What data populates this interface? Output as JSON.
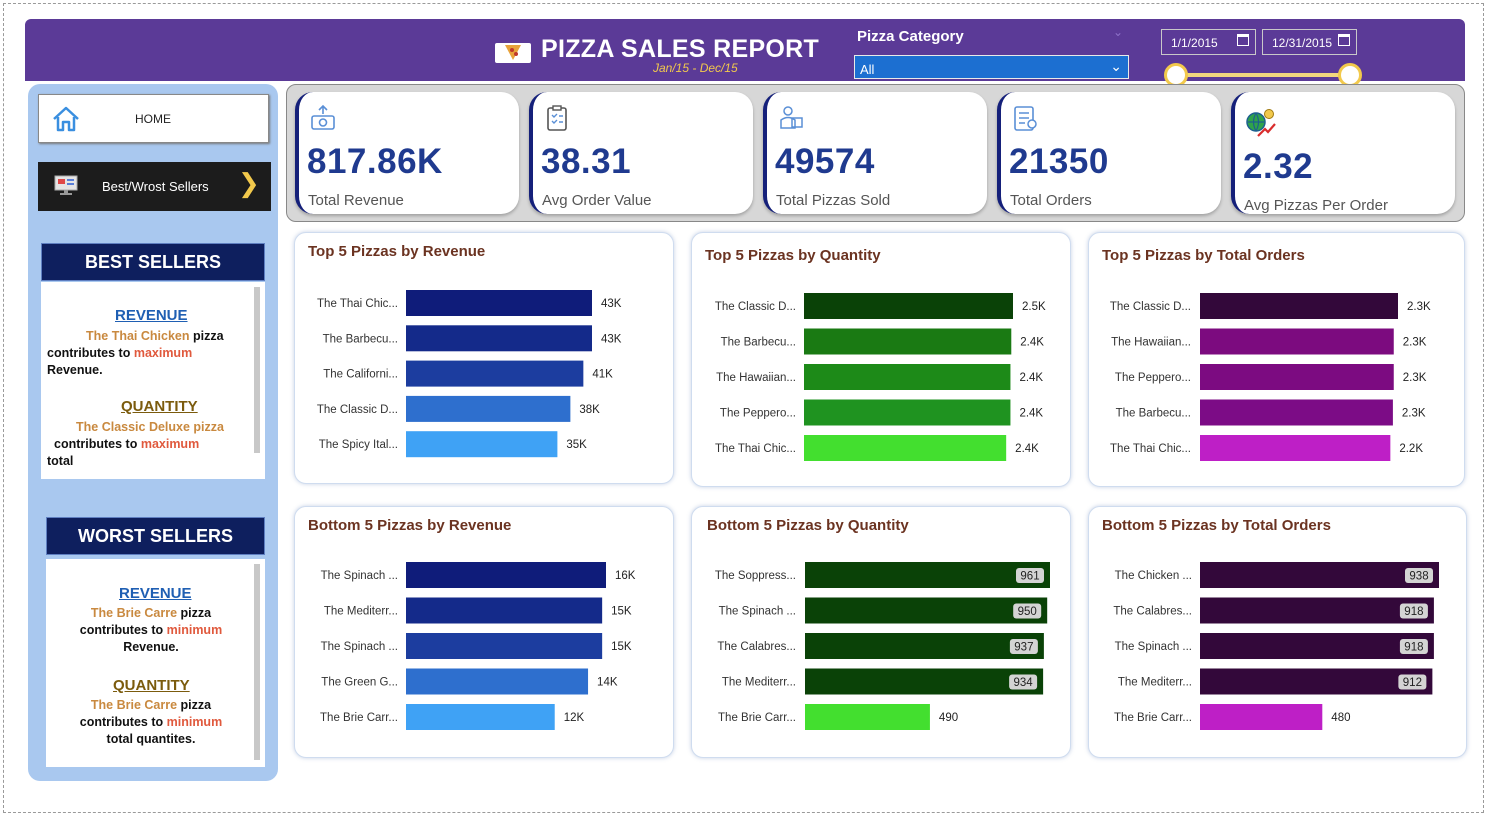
{
  "header": {
    "title": "PIZZA SALES REPORT",
    "subtitle": "Jan/15 - Dec/15",
    "category_label": "Pizza Category",
    "category_value": "All",
    "date_start": "1/1/2015",
    "date_end": "12/31/2015"
  },
  "nav": {
    "home_label": "HOME",
    "best_worst_label": "Best/Wrost Sellers"
  },
  "best_sellers": {
    "heading": "BEST SELLERS",
    "revenue_heading": "REVENUE",
    "revenue_pizza": "The Thai Chicken",
    "revenue_word": "pizza",
    "revenue_pre": "contributes to",
    "revenue_highlight": "maximum",
    "revenue_post": "Revenue.",
    "quantity_heading": "QUANTITY",
    "quantity_pizza": "The Classic Deluxe pizza",
    "quantity_pre": "contributes to",
    "quantity_highlight": "maximum",
    "quantity_post": "total"
  },
  "worst_sellers": {
    "heading": "WORST SELLERS",
    "revenue_heading": "REVENUE",
    "revenue_pizza": "The Brie Carre",
    "revenue_word": "pizza",
    "revenue_pre": "contributes to",
    "revenue_highlight": "minimum",
    "revenue_post": "Revenue.",
    "quantity_heading": "QUANTITY",
    "quantity_pizza": "The Brie Carre",
    "quantity_word": "pizza",
    "quantity_pre": "contributes to",
    "quantity_highlight": "minimum",
    "quantity_post": "total quantites."
  },
  "kpis": [
    {
      "value": "817.86K",
      "label": "Total Revenue",
      "icon": "money-icon"
    },
    {
      "value": "38.31",
      "label": "Avg Order Value",
      "icon": "clipboard-icon"
    },
    {
      "value": "49574",
      "label": "Total Pizzas Sold",
      "icon": "delivery-icon"
    },
    {
      "value": "21350",
      "label": "Total Orders",
      "icon": "order-list-icon"
    },
    {
      "value": "2.32",
      "label": "Avg Pizzas Per Order",
      "icon": "globe-growth-icon"
    }
  ],
  "colors": {
    "header": "#5b3a97",
    "blue": [
      "#0f1c7a",
      "#142a8a",
      "#1c3d9f",
      "#2e6fce",
      "#3fa2f5"
    ],
    "green": [
      "#0a4207",
      "#1a7a13",
      "#1d8a18",
      "#1f9320",
      "#43df2f"
    ],
    "purple": [
      "#33083a",
      "#7c0b7f",
      "#7c0b81",
      "#7c0c86",
      "#be1fc6"
    ],
    "green_bottom": [
      "#0a4207",
      "#0a4207",
      "#0a4207",
      "#0a4207",
      "#43df2f"
    ],
    "purple_bottom": [
      "#33083a",
      "#33083a",
      "#33083a",
      "#33083a",
      "#be1fc6"
    ]
  },
  "chart_data": [
    {
      "type": "bar",
      "orientation": "horizontal",
      "title": "Top 5 Pizzas by Revenue",
      "categories": [
        "The Thai Chic...",
        "The Barbecu...",
        "The Californi...",
        "The Classic D...",
        "The Spicy Ital..."
      ],
      "values": [
        43,
        43,
        41,
        38,
        35
      ],
      "labels": [
        "43K",
        "43K",
        "41K",
        "38K",
        "35K"
      ],
      "xlim": [
        0,
        43
      ],
      "palette": "blue",
      "label_style": "outside"
    },
    {
      "type": "bar",
      "orientation": "horizontal",
      "title": "Top 5 Pizzas by Quantity",
      "categories": [
        "The Classic D...",
        "The Barbecu...",
        "The Hawaiian...",
        "The Peppero...",
        "The Thai Chic..."
      ],
      "values": [
        2.45,
        2.43,
        2.42,
        2.42,
        2.37
      ],
      "labels": [
        "2.5K",
        "2.4K",
        "2.4K",
        "2.4K",
        "2.4K"
      ],
      "xlim": [
        0,
        2.45
      ],
      "palette": "green",
      "label_style": "outside"
    },
    {
      "type": "bar",
      "orientation": "horizontal",
      "title": "Top 5 Pizzas by Total Orders",
      "categories": [
        "The Classic D...",
        "The Hawaiian...",
        "The Peppero...",
        "The Barbecu...",
        "The Thai Chic..."
      ],
      "values": [
        2.33,
        2.28,
        2.28,
        2.27,
        2.24
      ],
      "labels": [
        "2.3K",
        "2.3K",
        "2.3K",
        "2.3K",
        "2.2K"
      ],
      "xlim": [
        0,
        2.33
      ],
      "palette": "purple",
      "label_style": "outside"
    },
    {
      "type": "bar",
      "orientation": "horizontal",
      "title": "Bottom 5 Pizzas by Revenue",
      "categories": [
        "The Spinach ...",
        "The Mediterr...",
        "The Spinach ...",
        "The Green G...",
        "The Brie Carr..."
      ],
      "values": [
        15.6,
        15.3,
        15.3,
        14.2,
        11.6
      ],
      "labels": [
        "16K",
        "15K",
        "15K",
        "14K",
        "12K"
      ],
      "xlim": [
        0,
        15.6
      ],
      "palette": "blue",
      "label_style": "outside"
    },
    {
      "type": "bar",
      "orientation": "horizontal",
      "title": "Bottom 5 Pizzas by Quantity",
      "categories": [
        "The Soppress...",
        "The Spinach ...",
        "The Calabres...",
        "The Mediterr...",
        "The Brie Carr..."
      ],
      "values": [
        961,
        950,
        937,
        934,
        490
      ],
      "labels": [
        "961",
        "950",
        "937",
        "934",
        "490"
      ],
      "xlim": [
        0,
        961
      ],
      "palette": "green_bottom",
      "label_style": "inside"
    },
    {
      "type": "bar",
      "orientation": "horizontal",
      "title": "Bottom 5 Pizzas by Total Orders",
      "categories": [
        "The Chicken ...",
        "The Calabres...",
        "The Spinach ...",
        "The Mediterr...",
        "The Brie Carr..."
      ],
      "values": [
        938,
        918,
        918,
        912,
        480
      ],
      "labels": [
        "938",
        "918",
        "918",
        "912",
        "480"
      ],
      "xlim": [
        0,
        938
      ],
      "palette": "purple_bottom",
      "label_style": "inside"
    }
  ]
}
